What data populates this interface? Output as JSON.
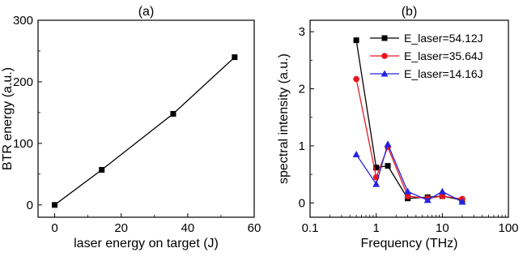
{
  "chart_data": [
    {
      "type": "line",
      "panel_label": "(a)",
      "xlabel": "laser energy on target (J)",
      "ylabel": "BTR energy (a.u.)",
      "xlim": [
        -5,
        60
      ],
      "ylim": [
        -20,
        300
      ],
      "x_ticks": [
        0,
        20,
        40,
        60
      ],
      "y_ticks": [
        0,
        100,
        200,
        300
      ],
      "grid": false,
      "series": [
        {
          "marker": "square",
          "color": "#000000",
          "x": [
            0,
            14.16,
            35.64,
            54.12
          ],
          "y": [
            0,
            57,
            148,
            240
          ]
        }
      ]
    },
    {
      "type": "line",
      "panel_label": "(b)",
      "xlabel": "Frequency (THz)",
      "ylabel": "spectral intensity (a.u.)",
      "x_scale": "log",
      "xlim": [
        0.1,
        100
      ],
      "ylim": [
        -0.25,
        3.2
      ],
      "x_ticks": [
        0.1,
        1,
        10,
        100
      ],
      "x_tick_labels": [
        "0.1",
        "1",
        "10",
        "100"
      ],
      "y_ticks": [
        0,
        1,
        2,
        3
      ],
      "grid": false,
      "legend_position": "top-right",
      "series": [
        {
          "name": "E_laser=54.12J",
          "color": "#000000",
          "marker": "square",
          "x": [
            0.5,
            1,
            1.5,
            3,
            6,
            10,
            20
          ],
          "y": [
            2.85,
            0.62,
            0.65,
            0.08,
            0.1,
            0.12,
            0.05
          ]
        },
        {
          "name": "E_laser=35.64J",
          "color": "#e8171d",
          "marker": "circle",
          "x": [
            0.5,
            1,
            1.5,
            3,
            6,
            10,
            20
          ],
          "y": [
            2.17,
            0.45,
            0.98,
            0.12,
            0.08,
            0.12,
            0.07
          ]
        },
        {
          "name": "E_laser=14.16J",
          "color": "#2424e0",
          "marker": "triangle",
          "x": [
            0.5,
            1,
            1.5,
            3,
            6,
            10,
            20
          ],
          "y": [
            0.85,
            0.33,
            1.03,
            0.2,
            0.05,
            0.2,
            0.02
          ]
        }
      ]
    }
  ]
}
